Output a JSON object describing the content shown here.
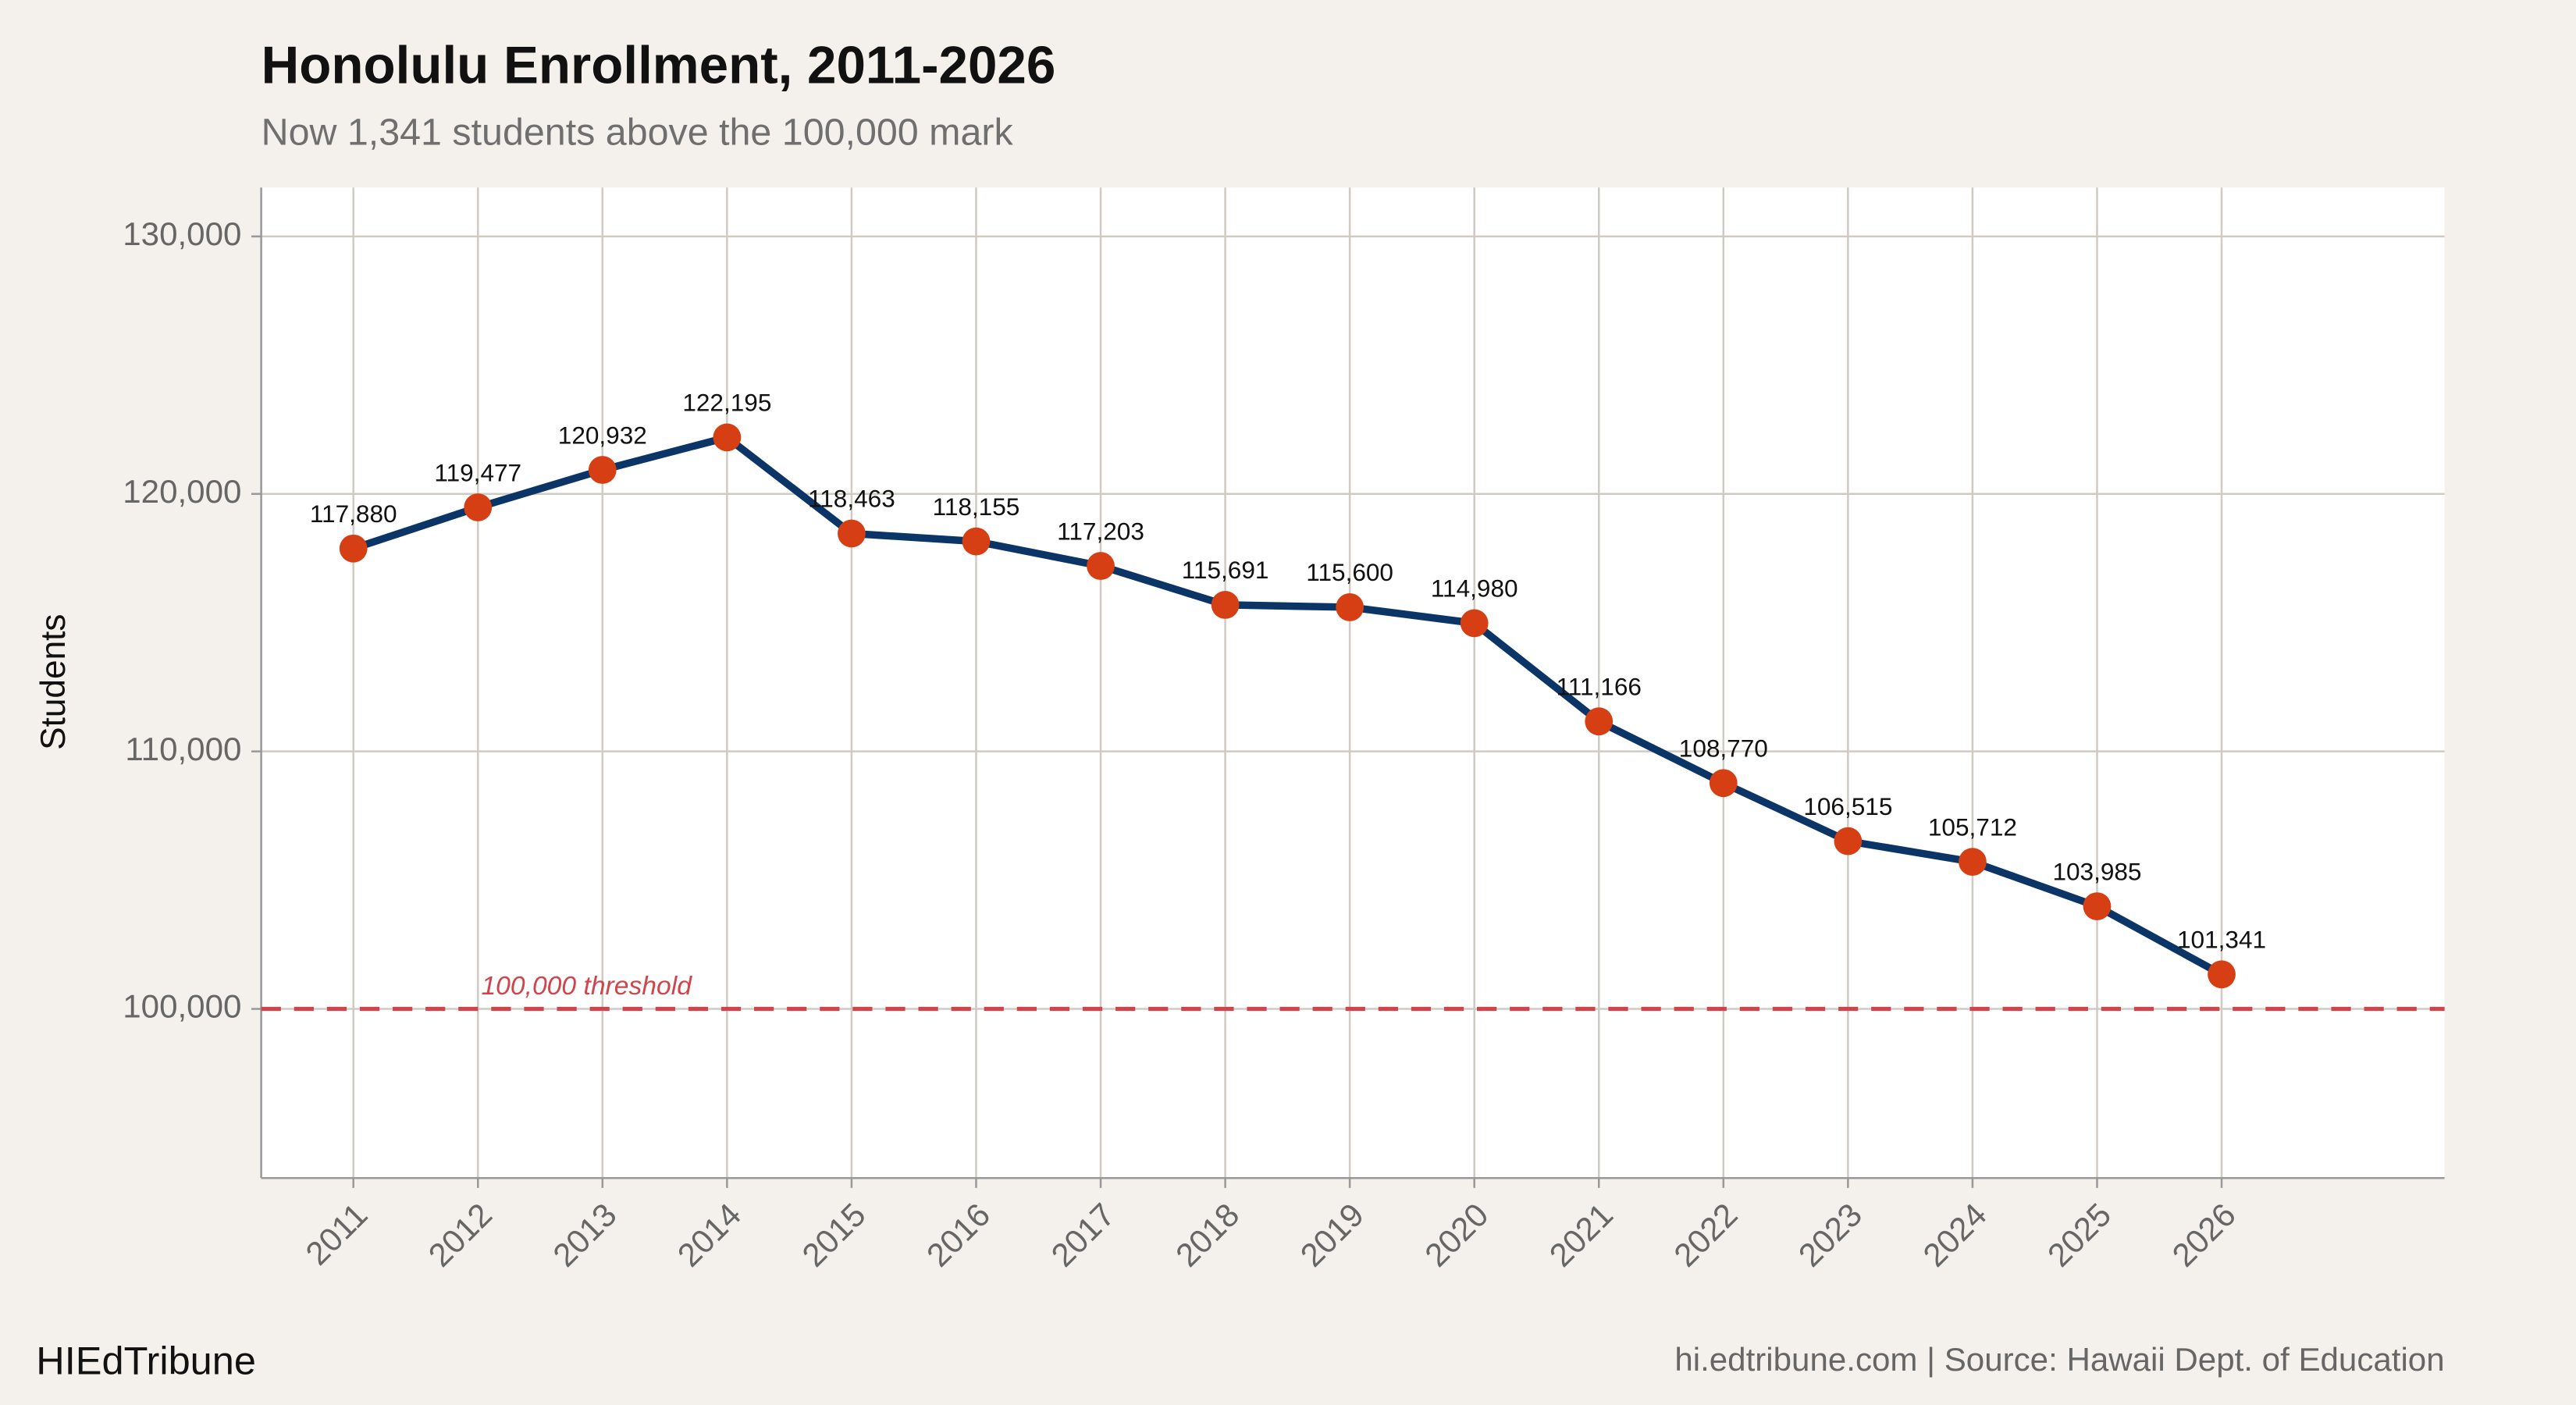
{
  "chart_data": {
    "type": "line",
    "title": "Honolulu Enrollment, 2011-2026",
    "subtitle": "Now 1,341 students above the 100,000 mark",
    "y_label": "Students",
    "footer_left": "HIEdTribune",
    "footer_right": "hi.edtribune.com | Source: Hawaii Dept. of Education",
    "x": [
      2011,
      2012,
      2013,
      2014,
      2015,
      2016,
      2017,
      2018,
      2019,
      2020,
      2021,
      2022,
      2023,
      2024,
      2025,
      2026
    ],
    "xlim": [
      2010.26,
      2027.79
    ],
    "xticks": [
      2011,
      2012,
      2013,
      2014,
      2015,
      2016,
      2017,
      2018,
      2019,
      2020,
      2021,
      2022,
      2023,
      2024,
      2025,
      2026
    ],
    "ylim": [
      93430,
      131900
    ],
    "yticks": [
      {
        "value": 100000,
        "label": "100,000"
      },
      {
        "value": 110000,
        "label": "110,000"
      },
      {
        "value": 120000,
        "label": "120,000"
      },
      {
        "value": 130000,
        "label": "130,000"
      }
    ],
    "grid": true,
    "series": [
      {
        "name": "Enrollment",
        "color": "#0b3566",
        "marker_color": "#d63f13",
        "values": [
          117880,
          119477,
          120932,
          122195,
          118463,
          118155,
          117203,
          115691,
          115600,
          114980,
          111166,
          108770,
          106515,
          105712,
          103985,
          101341
        ],
        "value_labels": [
          "117,880",
          "119,477",
          "120,932",
          "122,195",
          "118,463",
          "118,155",
          "117,203",
          "115,691",
          "115,600",
          "114,980",
          "111,166",
          "108,770",
          "106,515",
          "105,712",
          "103,985",
          "101,341"
        ]
      }
    ],
    "reference_line": {
      "value": 100000,
      "label": "100,000 threshold",
      "color": "#d0454c"
    }
  }
}
